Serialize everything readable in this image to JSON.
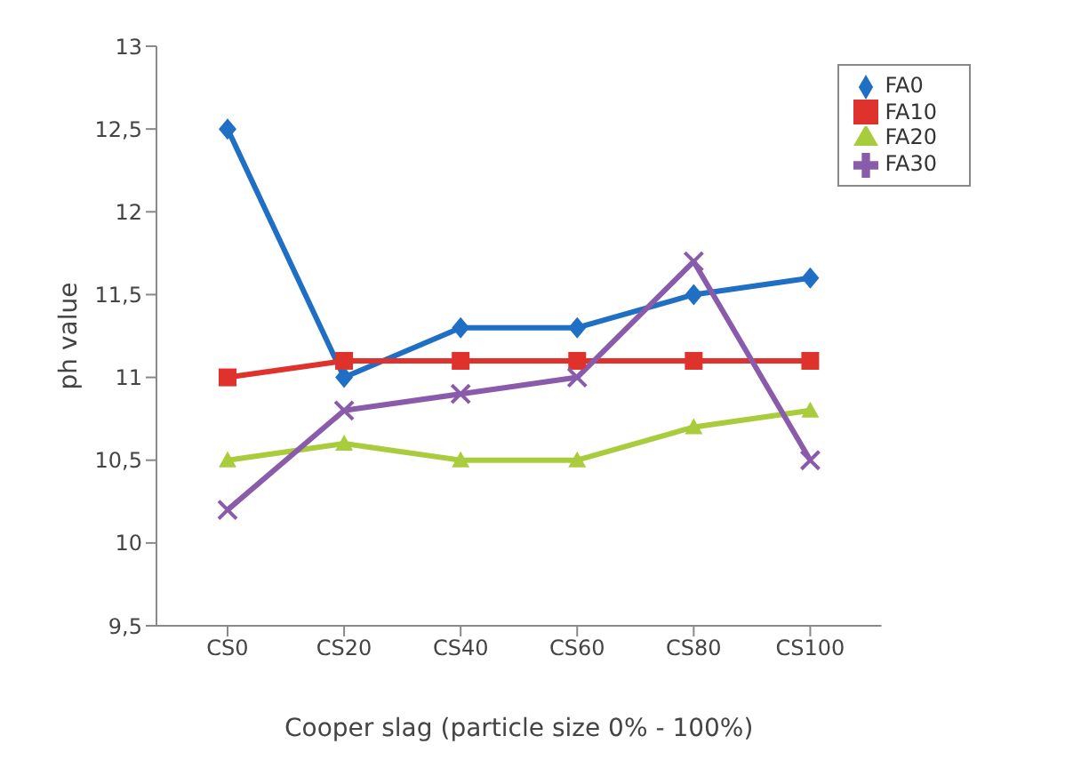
{
  "chart_data": {
    "type": "line",
    "xlabel": "Cooper slag (particle size 0% - 100%)",
    "ylabel": "ph value",
    "categories": [
      "CS0",
      "CS20",
      "CS40",
      "CS60",
      "CS80",
      "CS100"
    ],
    "series": [
      {
        "name": "FA0",
        "color": "#1f6fc5",
        "marker": "diamond",
        "values": [
          12.5,
          11.0,
          11.3,
          11.3,
          11.5,
          11.6
        ]
      },
      {
        "name": "FA10",
        "color": "#e0322d",
        "marker": "square",
        "values": [
          11.0,
          11.1,
          11.1,
          11.1,
          11.1,
          11.1
        ]
      },
      {
        "name": "FA20",
        "color": "#a8cc3c",
        "marker": "triangle",
        "values": [
          10.5,
          10.6,
          10.5,
          10.5,
          10.7,
          10.8
        ]
      },
      {
        "name": "FA30",
        "color": "#8a5bab",
        "marker": "cross",
        "values": [
          10.2,
          10.8,
          10.9,
          11.0,
          11.7,
          10.5
        ]
      }
    ],
    "ylim": [
      9.5,
      13
    ],
    "yticks": [
      {
        "value": 9.5,
        "label": "9,5"
      },
      10,
      {
        "value": 10.5,
        "label": "10,5"
      },
      11,
      {
        "value": 11.5,
        "label": "11,5"
      },
      12,
      {
        "value": 12.5,
        "label": "12,5"
      },
      13
    ],
    "grid": false,
    "legend": "top right",
    "line_style": "solid"
  }
}
